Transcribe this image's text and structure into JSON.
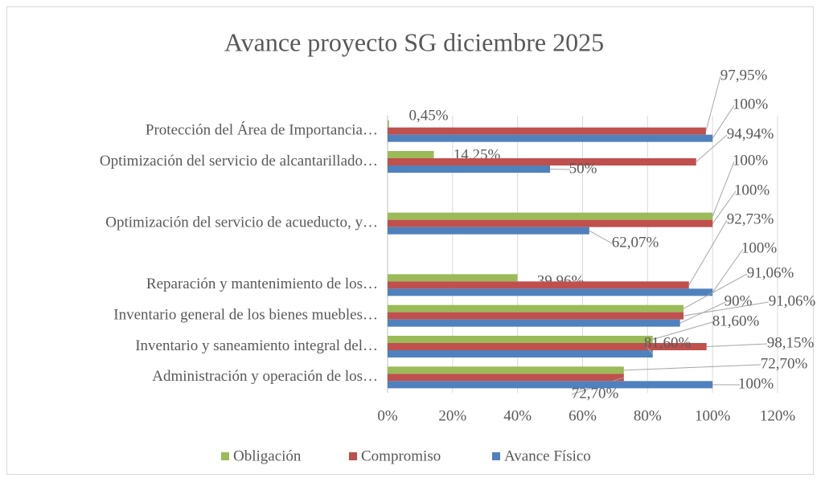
{
  "chart_data": {
    "type": "hbar",
    "title": "Avance proyecto SG diciembre 2025",
    "categories": [
      "Protección del Área de Importancia…",
      "Optimización del servicio de alcantarillado…",
      null,
      "Optimización del servicio de acueducto, y…",
      null,
      "Reparación y mantenimiento de los…",
      "Inventario general de los bienes muebles…",
      "Inventario y saneamiento integral del…",
      "Administración y operación de los…"
    ],
    "series": [
      {
        "name": "Obligación",
        "color": "#9bbb59",
        "values": [
          0.45,
          14.25,
          null,
          100,
          null,
          39.96,
          91.06,
          81.6,
          72.7
        ],
        "value_labels": [
          "0,45%",
          "14,25%",
          null,
          "100%",
          null,
          "39,96%",
          "91,06%",
          "81,60%",
          "72,70%"
        ]
      },
      {
        "name": "Compromiso",
        "color": "#c0504d",
        "values": [
          97.95,
          94.94,
          null,
          100,
          null,
          92.73,
          91.06,
          98.15,
          72.7
        ],
        "value_labels": [
          "97,95%",
          "94,94%",
          null,
          "100%",
          null,
          "92,73%",
          "91,06%",
          "98,15%",
          "72,70%"
        ]
      },
      {
        "name": "Avance Físico",
        "color": "#4f81bd",
        "values": [
          100,
          50,
          null,
          62.07,
          null,
          100,
          90,
          81.6,
          100
        ],
        "value_labels": [
          "100%",
          "50%",
          null,
          "62,07%",
          null,
          "100%",
          "90%",
          "81,60%",
          "100%"
        ]
      }
    ],
    "xlim": [
      0,
      120
    ],
    "xticks": [
      {
        "value": 0,
        "label": "0%"
      },
      {
        "value": 20,
        "label": "20%"
      },
      {
        "value": 40,
        "label": "40%"
      },
      {
        "value": 60,
        "label": "60%"
      },
      {
        "value": 80,
        "label": "80%"
      },
      {
        "value": 100,
        "label": "100%"
      },
      {
        "value": 120,
        "label": "120%"
      }
    ],
    "grid": true,
    "legend": "bottom"
  }
}
